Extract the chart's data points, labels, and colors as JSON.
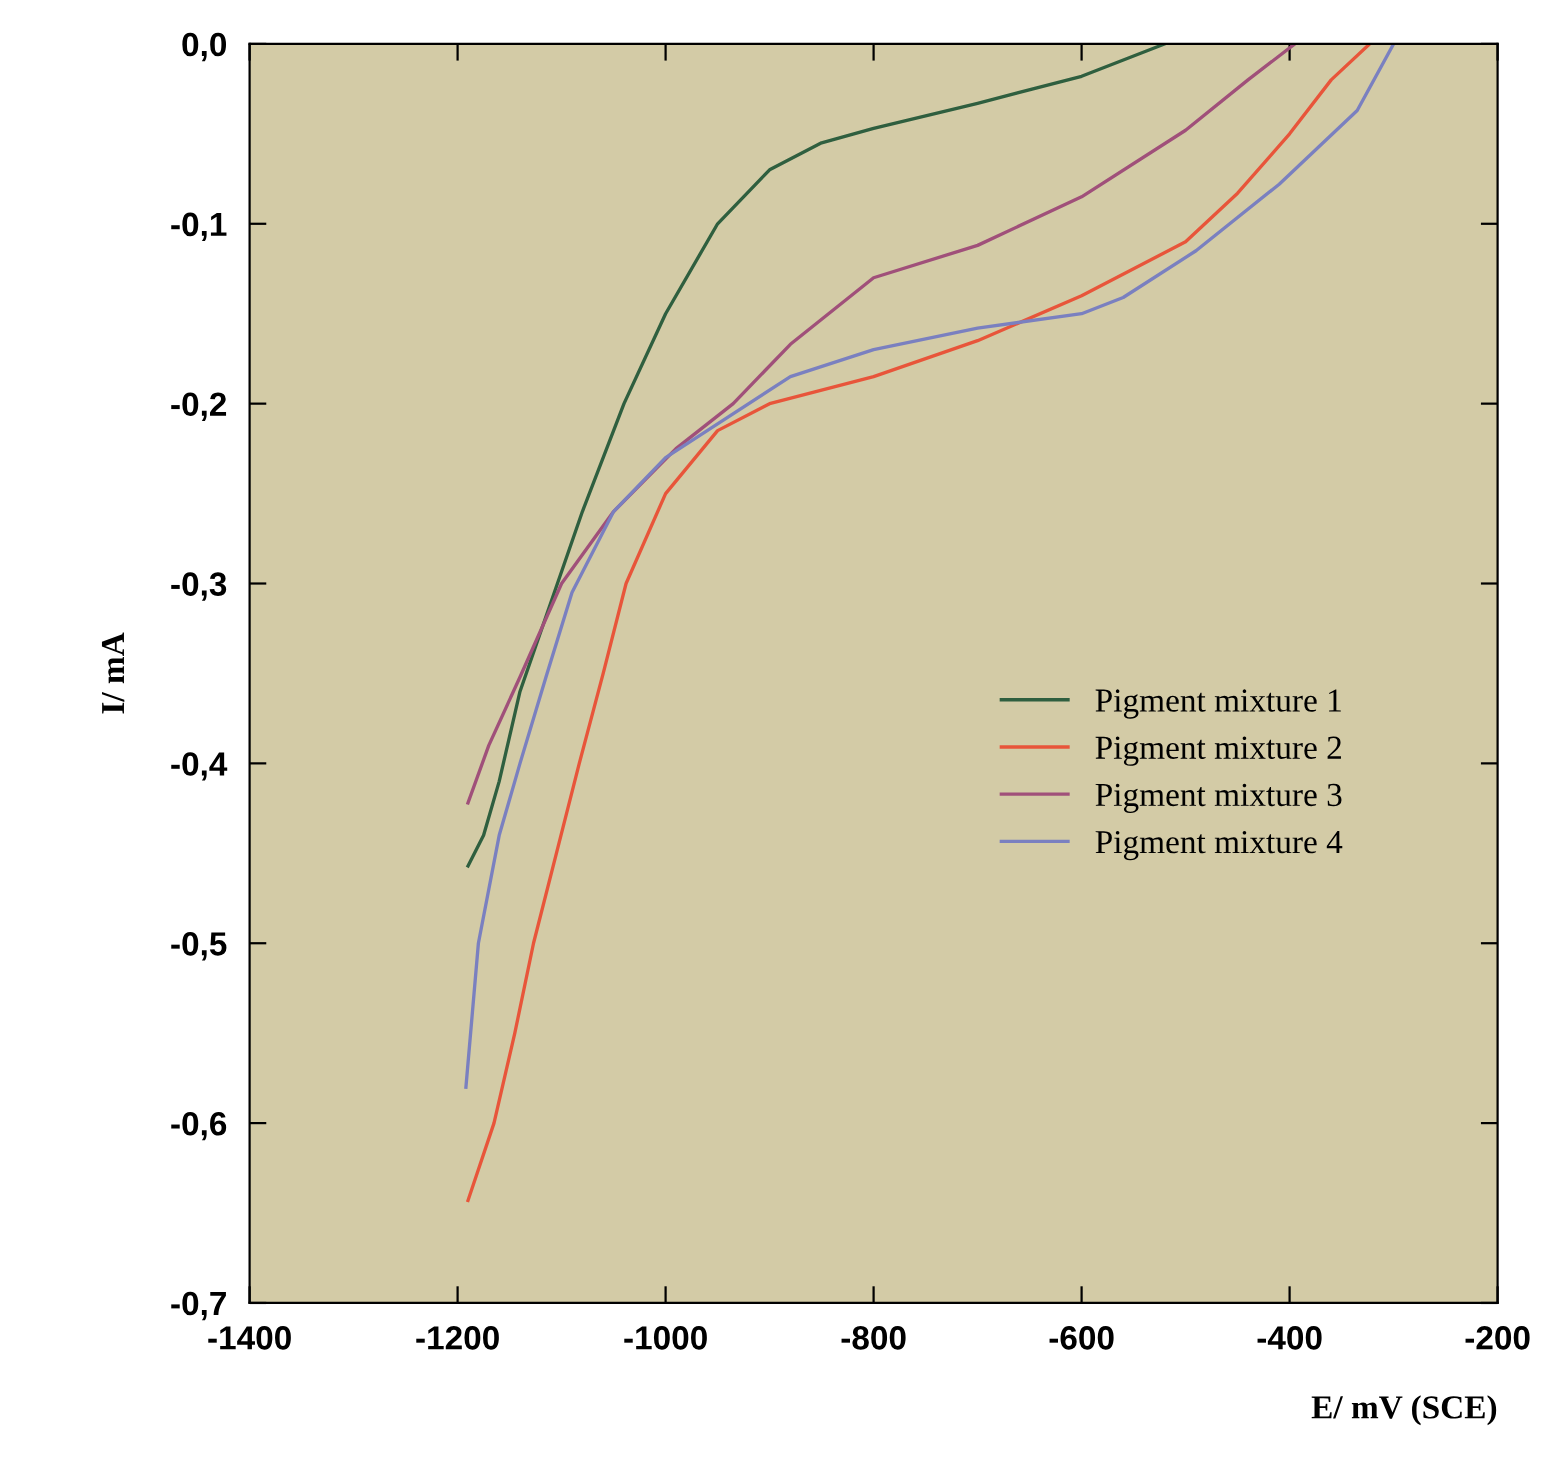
{
  "chart_data": {
    "type": "line",
    "xlabel": "E/ mV (SCE)",
    "ylabel": "I/ mA",
    "xlim": [
      -1400,
      -200
    ],
    "xticks": [
      -1400,
      -1200,
      -1000,
      -800,
      -600,
      -400,
      -200
    ],
    "ylim": [
      -0.7,
      0.0
    ],
    "yticks": [
      {
        "value": 0.0,
        "label": "0,0"
      },
      {
        "value": -0.1,
        "label": "-0,1"
      },
      {
        "value": -0.2,
        "label": "-0,2"
      },
      {
        "value": -0.3,
        "label": "-0,3"
      },
      {
        "value": -0.4,
        "label": "-0,4"
      },
      {
        "value": -0.5,
        "label": "-0,5"
      },
      {
        "value": -0.6,
        "label": "-0,6"
      },
      {
        "value": -0.7,
        "label": "-0,7"
      }
    ],
    "grid": false,
    "legend": "right",
    "marker": "none",
    "line_style": "solid",
    "series": [
      {
        "name": "Pigment mixture 1",
        "color": "#2f5f3f",
        "x": [
          -1190,
          -1175,
          -1160,
          -1140,
          -1110,
          -1080,
          -1040,
          -1000,
          -950,
          -900,
          -850,
          -800,
          -700,
          -600,
          -520
        ],
        "values": [
          -0.457,
          -0.44,
          -0.41,
          -0.36,
          -0.31,
          -0.26,
          -0.2,
          -0.15,
          -0.1,
          -0.07,
          -0.055,
          -0.047,
          -0.033,
          -0.018,
          0.0
        ]
      },
      {
        "name": "Pigment mixture 2",
        "color": "#e8553a",
        "x": [
          -1190,
          -1165,
          -1145,
          -1127,
          -1105,
          -1083,
          -1060,
          -1038,
          -1000,
          -950,
          -900,
          -800,
          -700,
          -600,
          -500,
          -450,
          -400,
          -360,
          -323
        ],
        "values": [
          -0.643,
          -0.6,
          -0.55,
          -0.5,
          -0.45,
          -0.4,
          -0.35,
          -0.3,
          -0.25,
          -0.215,
          -0.2,
          -0.185,
          -0.165,
          -0.14,
          -0.11,
          -0.083,
          -0.05,
          -0.02,
          0.0
        ]
      },
      {
        "name": "Pigment mixture 3",
        "color": "#a0507a",
        "x": [
          -1190,
          -1170,
          -1140,
          -1100,
          -1050,
          -990,
          -935,
          -880,
          -800,
          -700,
          -600,
          -500,
          -440,
          -395
        ],
        "values": [
          -0.422,
          -0.39,
          -0.352,
          -0.3,
          -0.26,
          -0.225,
          -0.2,
          -0.167,
          -0.13,
          -0.112,
          -0.085,
          -0.048,
          -0.02,
          0.0
        ]
      },
      {
        "name": "Pigment mixture 4",
        "color": "#7a80c0",
        "x": [
          -1192,
          -1180,
          -1160,
          -1140,
          -1115,
          -1090,
          -1050,
          -1000,
          -960,
          -880,
          -800,
          -700,
          -600,
          -560,
          -490,
          -410,
          -335,
          -300
        ],
        "values": [
          -0.58,
          -0.5,
          -0.44,
          -0.4,
          -0.352,
          -0.305,
          -0.26,
          -0.23,
          -0.215,
          -0.185,
          -0.17,
          -0.158,
          -0.15,
          -0.141,
          -0.115,
          -0.078,
          -0.037,
          0.0
        ]
      }
    ]
  }
}
